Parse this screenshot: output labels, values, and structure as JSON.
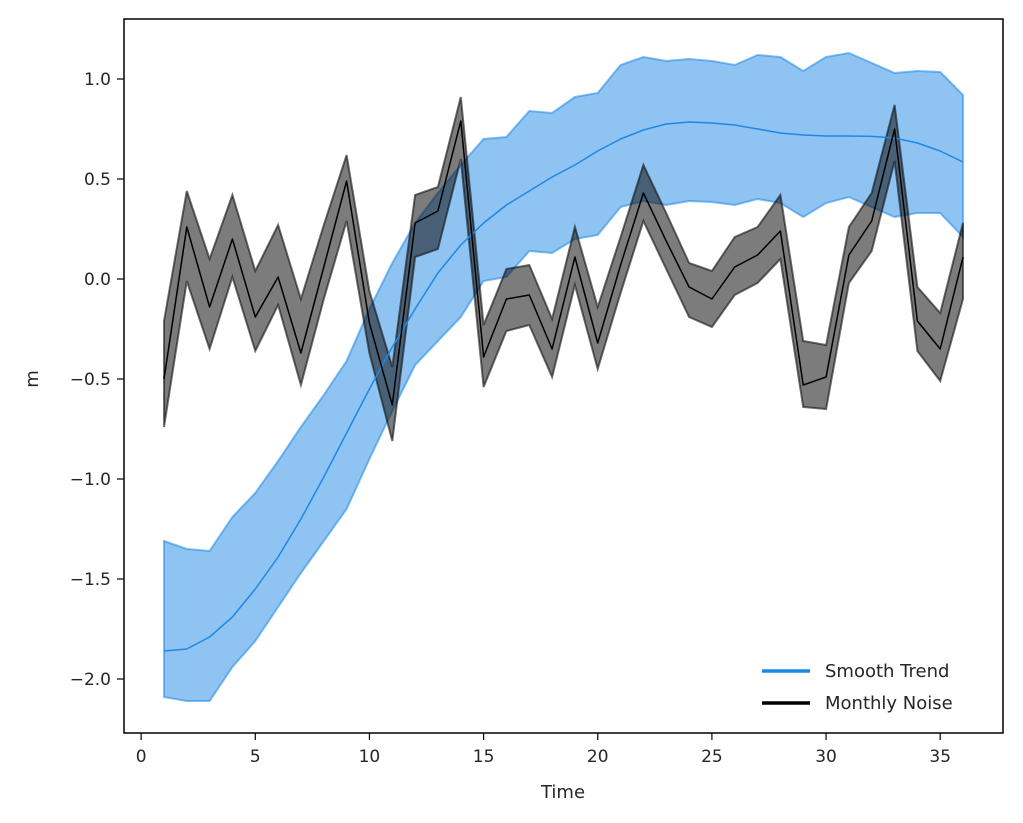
{
  "chart_data": {
    "type": "line",
    "title": "",
    "xlabel": "Time",
    "ylabel": "m",
    "xlim": [
      -0.75,
      37.75
    ],
    "ylim": [
      -2.27,
      1.3
    ],
    "xticks": [
      0,
      5,
      10,
      15,
      20,
      25,
      30,
      35
    ],
    "xtick_labels": [
      "0",
      "5",
      "10",
      "15",
      "20",
      "25",
      "30",
      "35"
    ],
    "yticks": [
      -2.0,
      -1.5,
      -1.0,
      -0.5,
      0.0,
      0.5,
      1.0
    ],
    "ytick_labels": [
      "−2.0",
      "−1.5",
      "−1.0",
      "−0.5",
      "0.0",
      "0.5",
      "1.0"
    ],
    "grid": false,
    "legend_position": "lower-right",
    "x": [
      1,
      2,
      3,
      4,
      5,
      6,
      7,
      8,
      9,
      10,
      11,
      12,
      13,
      14,
      15,
      16,
      17,
      18,
      19,
      20,
      21,
      22,
      23,
      24,
      25,
      26,
      27,
      28,
      29,
      30,
      31,
      32,
      33,
      34,
      35,
      36
    ],
    "series": [
      {
        "name": "Smooth Trend",
        "color": "#1e88e5",
        "band_color": "#1e88e5",
        "values": [
          -1.86,
          -1.85,
          -1.79,
          -1.69,
          -1.55,
          -1.39,
          -1.2,
          -0.99,
          -0.77,
          -0.55,
          -0.34,
          -0.15,
          0.03,
          0.17,
          0.28,
          0.37,
          0.44,
          0.51,
          0.57,
          0.64,
          0.7,
          0.745,
          0.775,
          0.785,
          0.78,
          0.77,
          0.75,
          0.73,
          0.72,
          0.715,
          0.715,
          0.713,
          0.705,
          0.68,
          0.64,
          0.585
        ],
        "lower": [
          -2.09,
          -2.11,
          -2.11,
          -1.94,
          -1.81,
          -1.64,
          -1.47,
          -1.31,
          -1.15,
          -0.9,
          -0.66,
          -0.43,
          -0.31,
          -0.19,
          -0.01,
          0.01,
          0.14,
          0.13,
          0.2,
          0.22,
          0.36,
          0.39,
          0.37,
          0.39,
          0.385,
          0.37,
          0.4,
          0.38,
          0.31,
          0.38,
          0.41,
          0.36,
          0.31,
          0.33,
          0.33,
          0.21
        ],
        "upper": [
          -1.31,
          -1.35,
          -1.36,
          -1.19,
          -1.07,
          -0.91,
          -0.74,
          -0.58,
          -0.41,
          -0.15,
          0.08,
          0.28,
          0.43,
          0.57,
          0.7,
          0.71,
          0.84,
          0.83,
          0.91,
          0.93,
          1.07,
          1.11,
          1.09,
          1.1,
          1.09,
          1.07,
          1.12,
          1.11,
          1.04,
          1.11,
          1.13,
          1.08,
          1.03,
          1.04,
          1.035,
          0.92
        ]
      },
      {
        "name": "Monthly Noise",
        "color": "#000000",
        "band_color": "#111111",
        "values": [
          -0.5,
          0.26,
          -0.14,
          0.2,
          -0.19,
          0.01,
          -0.37,
          0.06,
          0.49,
          -0.22,
          -0.63,
          0.28,
          0.34,
          0.79,
          -0.39,
          -0.1,
          -0.08,
          -0.35,
          0.11,
          -0.32,
          0.07,
          0.43,
          0.19,
          -0.04,
          -0.1,
          0.06,
          0.12,
          0.24,
          -0.53,
          -0.49,
          0.12,
          0.29,
          0.75,
          -0.21,
          -0.35,
          0.11
        ],
        "lower": [
          -0.74,
          -0.01,
          -0.35,
          0.01,
          -0.36,
          -0.13,
          -0.53,
          -0.1,
          0.29,
          -0.37,
          -0.81,
          0.11,
          0.15,
          0.6,
          -0.54,
          -0.26,
          -0.23,
          -0.49,
          -0.03,
          -0.45,
          -0.07,
          0.29,
          0.05,
          -0.19,
          -0.24,
          -0.08,
          -0.02,
          0.1,
          -0.64,
          -0.65,
          -0.02,
          0.14,
          0.59,
          -0.36,
          -0.51,
          -0.1
        ],
        "upper": [
          -0.21,
          0.44,
          0.1,
          0.42,
          0.04,
          0.27,
          -0.1,
          0.27,
          0.62,
          -0.06,
          -0.44,
          0.42,
          0.46,
          0.91,
          -0.23,
          0.05,
          0.07,
          -0.2,
          0.26,
          -0.14,
          0.21,
          0.57,
          0.33,
          0.08,
          0.04,
          0.21,
          0.26,
          0.42,
          -0.31,
          -0.33,
          0.26,
          0.43,
          0.87,
          -0.04,
          -0.17,
          0.28
        ]
      }
    ]
  }
}
